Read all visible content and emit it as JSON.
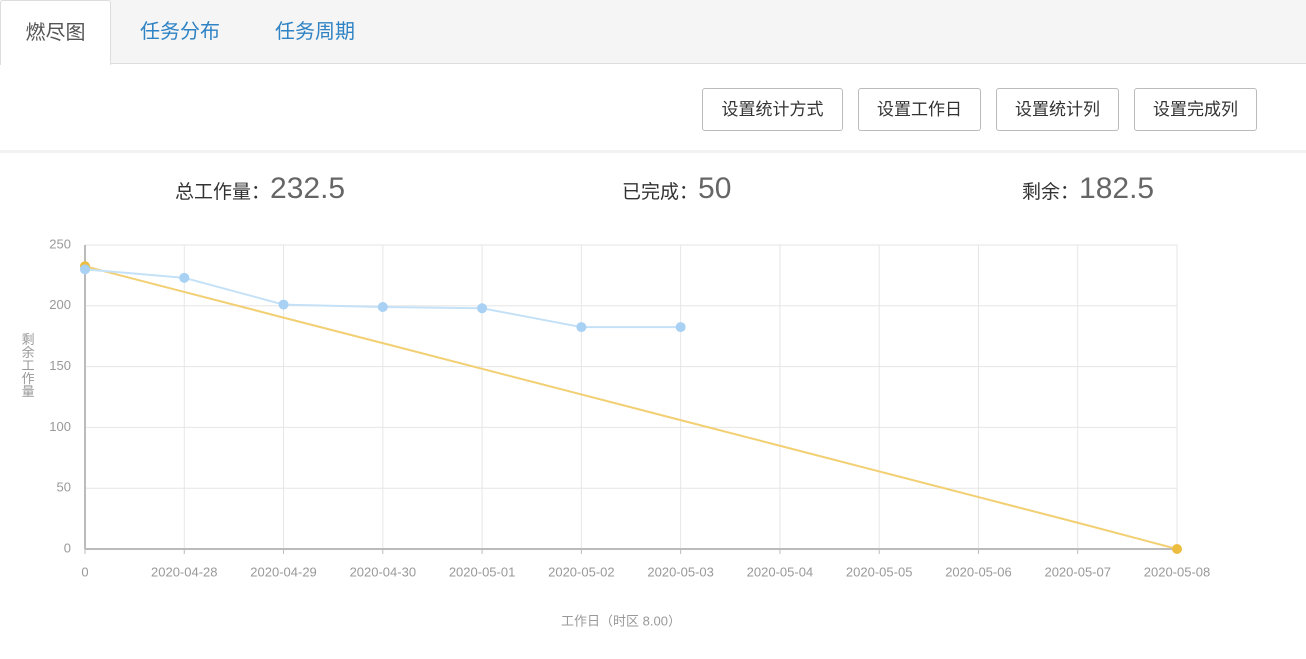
{
  "tabs": [
    "燃尽图",
    "任务分布",
    "任务周期"
  ],
  "buttons": [
    "设置统计方式",
    "设置工作日",
    "设置统计列",
    "设置完成列"
  ],
  "stats": [
    {
      "label": "总工作量：",
      "value": 232.5
    },
    {
      "label": "已完成：",
      "value": 50
    },
    {
      "label": "剩余：",
      "value": 182.5
    }
  ],
  "chart_data": {
    "type": "line",
    "y_label": "剩余工作量",
    "x_label": "工作日（时区 8.00）",
    "categories": [
      "0",
      "2020-04-28",
      "2020-04-29",
      "2020-04-30",
      "2020-05-01",
      "2020-05-02",
      "2020-05-03",
      "2020-05-04",
      "2020-05-05",
      "2020-05-06",
      "2020-05-07",
      "2020-05-08"
    ],
    "series": [
      {
        "color": "#f2cf72",
        "marker": "#ecbd3e",
        "values": [
          232.5,
          211.4,
          190.3,
          169.3,
          148.2,
          127.1,
          106.0,
          84.9,
          63.8,
          42.7,
          21.6,
          0
        ]
      },
      {
        "color": "#c4e1f7",
        "marker": "#a8d1f3",
        "values": [
          230,
          223,
          201,
          199,
          198,
          182.5,
          182.5,
          null,
          null,
          null,
          null,
          null
        ]
      }
    ],
    "ylim": [
      0,
      250
    ],
    "yticks": [
      0,
      50,
      100,
      150,
      200,
      250
    ],
    "grid": true
  }
}
